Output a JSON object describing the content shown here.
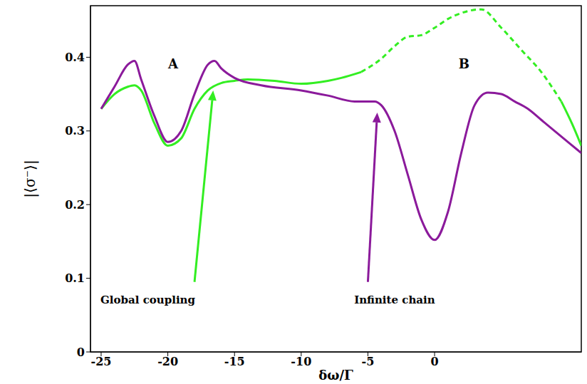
{
  "chart_data": {
    "type": "line",
    "x_label": "δω/Γ",
    "y_label": "|⟨σ⁻⟩|",
    "xlim": [
      -25.8,
      11
    ],
    "xticks": [
      -25,
      -20,
      -15,
      -10,
      -5,
      0
    ],
    "ylim": [
      0,
      0.47
    ],
    "yticks": [
      0,
      0.1,
      0.2,
      0.3,
      0.4
    ],
    "grid": false,
    "annotations": [
      "A",
      "B"
    ],
    "series": [
      {
        "name": "Global coupling",
        "color": "#33ee22",
        "segments": [
          {
            "line_style": "solid",
            "x": [
              -25,
              -24,
              -23,
              -22.5,
              -22,
              -21,
              -20,
              -19,
              -18,
              -17,
              -16,
              -15,
              -14,
              -12,
              -10,
              -8,
              -7,
              -5.5
            ],
            "values": [
              0.33,
              0.35,
              0.36,
              0.362,
              0.355,
              0.31,
              0.28,
              0.29,
              0.33,
              0.355,
              0.365,
              0.368,
              0.37,
              0.368,
              0.364,
              0.368,
              0.372,
              0.38
            ]
          },
          {
            "line_style": "dashed",
            "x": [
              -5.5,
              -4,
              -3,
              -2,
              -1,
              0,
              1,
              2,
              3.5,
              5,
              6.5,
              8,
              9.5
            ],
            "values": [
              0.38,
              0.398,
              0.415,
              0.428,
              0.43,
              0.44,
              0.452,
              0.46,
              0.465,
              0.44,
              0.41,
              0.38,
              0.34
            ]
          },
          {
            "line_style": "solid",
            "x": [
              9.5,
              10.3,
              11
            ],
            "values": [
              0.34,
              0.31,
              0.28
            ]
          }
        ]
      },
      {
        "name": "Infinite chain",
        "color": "#8b1a9b",
        "line_style": "solid",
        "x": [
          -25,
          -24,
          -23,
          -22.5,
          -22,
          -21,
          -20,
          -19,
          -18,
          -17,
          -16.5,
          -16,
          -15,
          -13,
          -10,
          -8,
          -6,
          -4.5,
          -4,
          -3,
          -2,
          -1,
          0,
          1,
          2,
          3,
          4,
          5,
          6,
          7,
          8,
          9,
          10,
          11
        ],
        "values": [
          0.33,
          0.36,
          0.39,
          0.395,
          0.37,
          0.32,
          0.285,
          0.3,
          0.35,
          0.39,
          0.395,
          0.385,
          0.372,
          0.362,
          0.355,
          0.348,
          0.34,
          0.34,
          0.335,
          0.3,
          0.24,
          0.18,
          0.152,
          0.19,
          0.27,
          0.335,
          0.352,
          0.35,
          0.34,
          0.33,
          0.315,
          0.3,
          0.285,
          0.27
        ]
      }
    ]
  }
}
